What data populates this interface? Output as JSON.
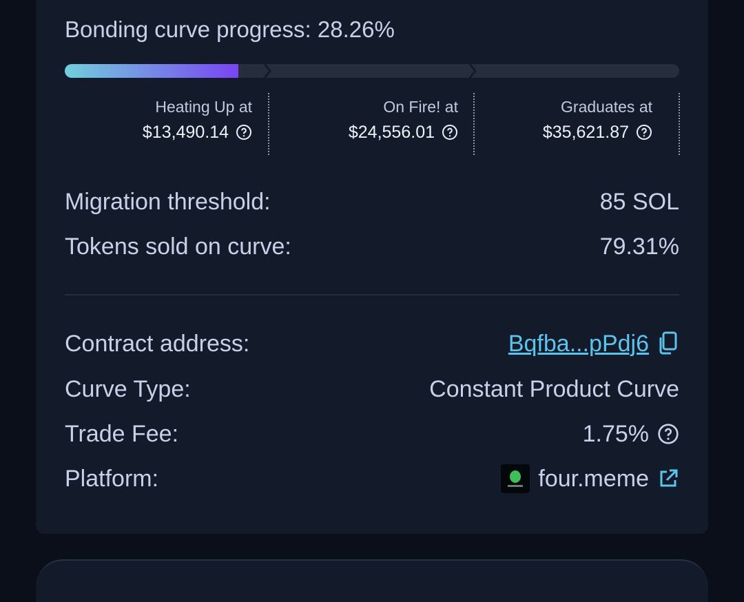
{
  "progress": {
    "label": "Bonding curve progress:",
    "value": "28.26%"
  },
  "milestones": [
    {
      "label": "Heating Up at",
      "value": "$13,490.14"
    },
    {
      "label": "On Fire! at",
      "value": "$24,556.01"
    },
    {
      "label": "Graduates at",
      "value": "$35,621.87"
    }
  ],
  "stats": [
    {
      "label": "Migration threshold:",
      "value": "85 SOL"
    },
    {
      "label": "Tokens sold on curve:",
      "value": "79.31%"
    }
  ],
  "details": [
    {
      "label": "Contract address:",
      "value": "Bqfba...pPdj6"
    },
    {
      "label": "Curve Type:",
      "value": "Constant Product Curve"
    },
    {
      "label": "Trade Fee:",
      "value": "1.75%"
    },
    {
      "label": "Platform:",
      "value": "four.meme"
    }
  ]
}
